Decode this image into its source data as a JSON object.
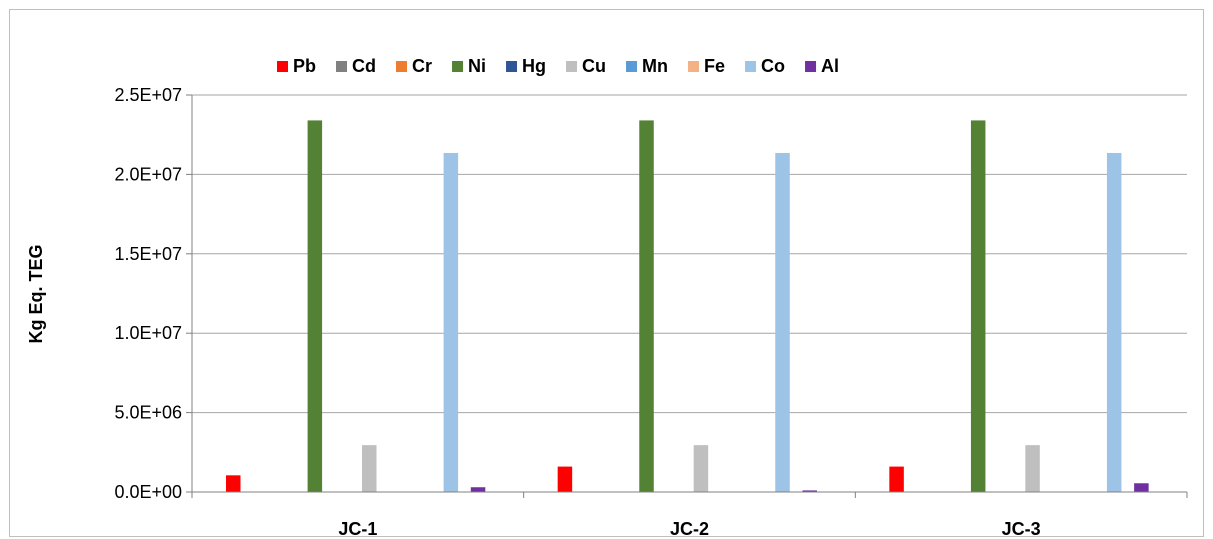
{
  "chart_data": {
    "type": "bar",
    "ylabel": "Kg Eq. TEG",
    "categories": [
      "JC-1",
      "JC-2",
      "JC-3"
    ],
    "ylim": [
      0,
      25000000
    ],
    "yticks": [
      "0.0E+00",
      "5.0E+06",
      "1.0E+07",
      "1.5E+07",
      "2.0E+07",
      "2.5E+07"
    ],
    "ytick_values": [
      0,
      5000000,
      10000000,
      15000000,
      20000000,
      25000000
    ],
    "grid": true,
    "legend_position": "top",
    "series": [
      {
        "name": "Pb",
        "color": "#ff0000",
        "values": [
          1050000,
          1600000,
          1600000
        ]
      },
      {
        "name": "Cd",
        "color": "#808080",
        "values": [
          0,
          0,
          0
        ]
      },
      {
        "name": "Cr",
        "color": "#ed7d31",
        "values": [
          0,
          0,
          0
        ]
      },
      {
        "name": "Ni",
        "color": "#548235",
        "values": [
          23400000,
          23400000,
          23400000
        ]
      },
      {
        "name": "Hg",
        "color": "#2f5597",
        "values": [
          0,
          0,
          0
        ]
      },
      {
        "name": "Cu",
        "color": "#bfbfbf",
        "values": [
          2950000,
          2950000,
          2950000
        ]
      },
      {
        "name": "Mn",
        "color": "#5b9bd5",
        "values": [
          0,
          0,
          0
        ]
      },
      {
        "name": "Fe",
        "color": "#f4b183",
        "values": [
          0,
          0,
          0
        ]
      },
      {
        "name": "Co",
        "color": "#9dc3e6",
        "values": [
          21350000,
          21350000,
          21350000
        ]
      },
      {
        "name": "Al",
        "color": "#7030a0",
        "values": [
          300000,
          100000,
          550000
        ]
      }
    ]
  }
}
